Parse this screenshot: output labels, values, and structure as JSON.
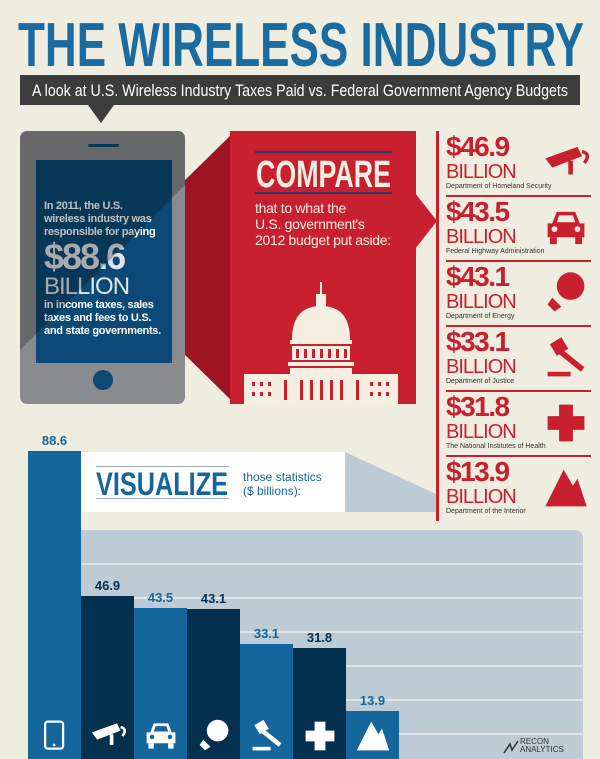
{
  "header": {
    "title": "THE WIRELESS INDUSTRY",
    "subtitle": "A look at U.S. Wireless Industry Taxes Paid vs. Federal Government Agency Budgets"
  },
  "phone": {
    "intro": [
      "In 2011, the U.S.",
      "wireless industry was",
      "responsible for paying"
    ],
    "amount": "$88.6",
    "unit": "BILLION",
    "outro": [
      "in income taxes, sales",
      "taxes and fees to U.S.",
      "and state governments."
    ]
  },
  "compare": {
    "title": "COMPARE",
    "text": [
      "that to what the",
      "U.S. government's",
      "2012 budget put aside:"
    ]
  },
  "agencies": [
    {
      "amount": "$46.9",
      "unit": "BILLION",
      "name": "Department of Homeland Security",
      "icon": "security-camera-icon"
    },
    {
      "amount": "$43.5",
      "unit": "BILLION",
      "name": "Federal Highway Administration",
      "icon": "car-icon"
    },
    {
      "amount": "$43.1",
      "unit": "BILLION",
      "name": "Department of Energy",
      "icon": "lightbulb-icon"
    },
    {
      "amount": "$33.1",
      "unit": "BILLION",
      "name": "Department of Justice",
      "icon": "gavel-icon"
    },
    {
      "amount": "$31.8",
      "unit": "BILLION",
      "name": "The National Institutes of Health",
      "icon": "medical-cross-icon"
    },
    {
      "amount": "$13.9",
      "unit": "BILLION",
      "name": "Department of the Interior",
      "icon": "mountain-icon"
    }
  ],
  "visualize": {
    "title": "VISUALIZE",
    "subtitle": [
      "those statistics",
      "($ billions):"
    ]
  },
  "colors": {
    "blue": "#15669d",
    "navy": "#04304f",
    "red": "#c8202f",
    "background": "#efede0",
    "band": "#bccbd4"
  },
  "chart_data": {
    "type": "bar",
    "categories": [
      "Wireless industry taxes",
      "Department of Homeland Security",
      "Federal Highway Administration",
      "Department of Energy",
      "Department of Justice",
      "The National Institutes of Health",
      "Department of the Interior"
    ],
    "values": [
      88.6,
      46.9,
      43.5,
      43.1,
      33.1,
      31.8,
      13.9
    ],
    "labels": [
      "88.6",
      "46.9",
      "43.5",
      "43.1",
      "33.1",
      "31.8",
      "13.9"
    ],
    "icons": [
      "tablet-icon",
      "security-camera-icon",
      "car-icon",
      "lightbulb-icon",
      "gavel-icon",
      "medical-cross-icon",
      "mountain-icon"
    ],
    "ylabel": "$ billions",
    "ylim": [
      0,
      88.6
    ],
    "grid": true
  },
  "logo": {
    "line1": "RECON",
    "line2": "ANALYTICS"
  }
}
